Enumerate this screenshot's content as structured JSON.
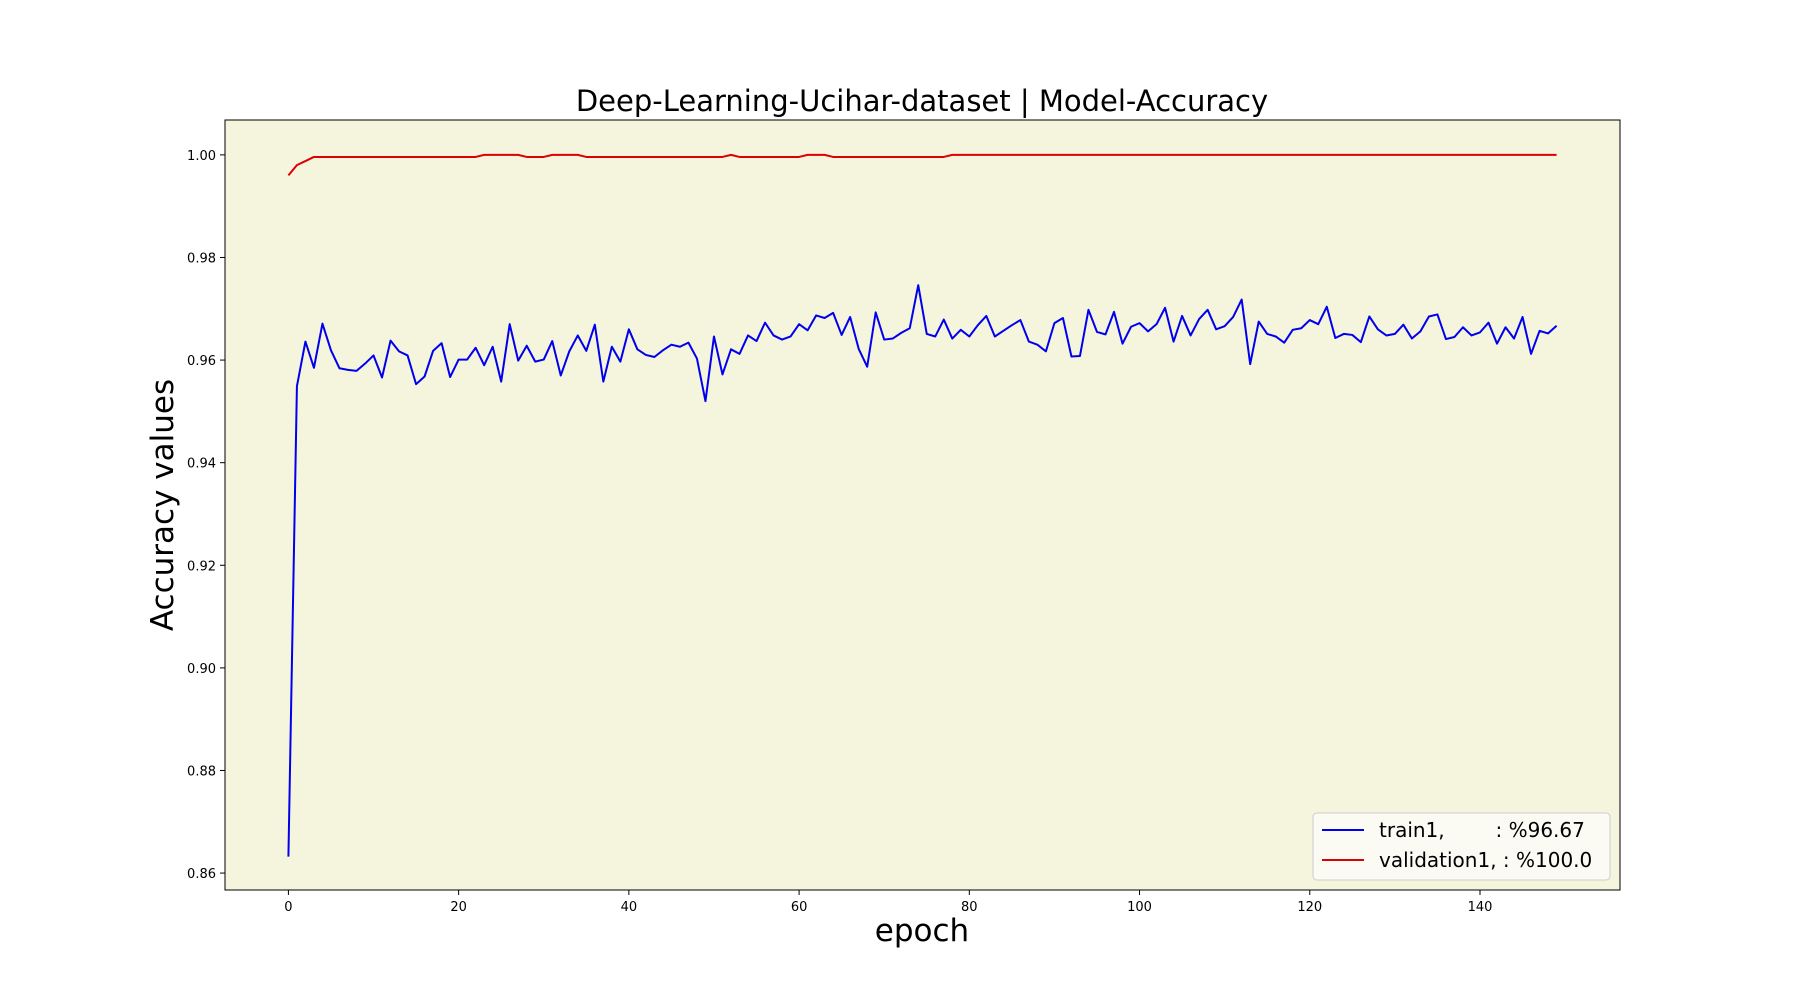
{
  "chart_data": {
    "type": "line",
    "title": "Deep-Learning-Ucihar-dataset  | Model-Accuracy",
    "xlabel": "epoch",
    "ylabel": "Accuracy values",
    "xlim": [
      -7.45,
      156.45
    ],
    "ylim": [
      0.8567,
      1.0068
    ],
    "xticks": [
      0,
      20,
      40,
      60,
      80,
      100,
      120,
      140
    ],
    "yticks": [
      0.86,
      0.88,
      0.9,
      0.92,
      0.94,
      0.96,
      0.98,
      1.0
    ],
    "ytick_labels": [
      "0.86",
      "0.88",
      "0.90",
      "0.92",
      "0.94",
      "0.96",
      "0.98",
      "1.00"
    ],
    "plot_background": "#f5f4dc",
    "grid": false,
    "legend_position": "lower-right",
    "series": [
      {
        "name": "train1,        : %96.67",
        "color": "#0000ee",
        "values": [
          0.8632,
          0.9549,
          0.9636,
          0.9585,
          0.9671,
          0.9619,
          0.9584,
          0.9581,
          0.9579,
          0.9593,
          0.9609,
          0.9566,
          0.9638,
          0.9617,
          0.9609,
          0.9553,
          0.9568,
          0.9618,
          0.9633,
          0.9567,
          0.9601,
          0.9601,
          0.9624,
          0.959,
          0.9626,
          0.9558,
          0.967,
          0.9599,
          0.9628,
          0.9597,
          0.9601,
          0.9637,
          0.957,
          0.9617,
          0.9648,
          0.9618,
          0.9669,
          0.9558,
          0.9626,
          0.9597,
          0.966,
          0.9621,
          0.961,
          0.9606,
          0.9619,
          0.963,
          0.9626,
          0.9634,
          0.9603,
          0.952,
          0.9646,
          0.9572,
          0.9621,
          0.9612,
          0.9648,
          0.9637,
          0.9673,
          0.9648,
          0.964,
          0.9646,
          0.967,
          0.9658,
          0.9687,
          0.9682,
          0.9692,
          0.9649,
          0.9684,
          0.9622,
          0.9587,
          0.9693,
          0.964,
          0.9642,
          0.9653,
          0.9662,
          0.9746,
          0.9651,
          0.9646,
          0.9679,
          0.9642,
          0.9659,
          0.9646,
          0.9668,
          0.9686,
          0.9646,
          0.9657,
          0.9668,
          0.9678,
          0.9636,
          0.963,
          0.9617,
          0.9672,
          0.9682,
          0.9607,
          0.9608,
          0.9698,
          0.9655,
          0.965,
          0.9694,
          0.9632,
          0.9665,
          0.9672,
          0.9656,
          0.967,
          0.9702,
          0.9636,
          0.9686,
          0.9648,
          0.968,
          0.9698,
          0.966,
          0.9666,
          0.9684,
          0.9718,
          0.9592,
          0.9675,
          0.9651,
          0.9646,
          0.9634,
          0.9659,
          0.9662,
          0.9678,
          0.967,
          0.9704,
          0.9643,
          0.9651,
          0.9649,
          0.9635,
          0.9685,
          0.966,
          0.9648,
          0.9651,
          0.9669,
          0.9642,
          0.9656,
          0.9685,
          0.9689,
          0.9641,
          0.9645,
          0.9664,
          0.9648,
          0.9654,
          0.9673,
          0.9632,
          0.9664,
          0.9642,
          0.9684,
          0.9612,
          0.9657,
          0.9652,
          0.9667
        ]
      },
      {
        "name": "validation1, : %100.0",
        "color": "#dd0000",
        "values": [
          0.996,
          0.998,
          0.9988,
          0.9996,
          0.9996,
          0.9996,
          0.9996,
          0.9996,
          0.9996,
          0.9996,
          0.9996,
          0.9996,
          0.9996,
          0.9996,
          0.9996,
          0.9996,
          0.9996,
          0.9996,
          0.9996,
          0.9996,
          0.9996,
          0.9996,
          0.9996,
          1.0,
          1.0,
          1.0,
          1.0,
          1.0,
          0.9996,
          0.9996,
          0.9996,
          1.0,
          1.0,
          1.0,
          1.0,
          0.9996,
          0.9996,
          0.9996,
          0.9996,
          0.9996,
          0.9996,
          0.9996,
          0.9996,
          0.9996,
          0.9996,
          0.9996,
          0.9996,
          0.9996,
          0.9996,
          0.9996,
          0.9996,
          0.9996,
          1.0,
          0.9996,
          0.9996,
          0.9996,
          0.9996,
          0.9996,
          0.9996,
          0.9996,
          0.9996,
          1.0,
          1.0,
          1.0,
          0.9996,
          0.9996,
          0.9996,
          0.9996,
          0.9996,
          0.9996,
          0.9996,
          0.9996,
          0.9996,
          0.9996,
          0.9996,
          0.9996,
          0.9996,
          0.9996,
          1.0,
          1.0,
          1.0,
          1.0,
          1.0,
          1.0,
          1.0,
          1.0,
          1.0,
          1.0,
          1.0,
          1.0,
          1.0,
          1.0,
          1.0,
          1.0,
          1.0,
          1.0,
          1.0,
          1.0,
          1.0,
          1.0,
          1.0,
          1.0,
          1.0,
          1.0,
          1.0,
          1.0,
          1.0,
          1.0,
          1.0,
          1.0,
          1.0,
          1.0,
          1.0,
          1.0,
          1.0,
          1.0,
          1.0,
          1.0,
          1.0,
          1.0,
          1.0,
          1.0,
          1.0,
          1.0,
          1.0,
          1.0,
          1.0,
          1.0,
          1.0,
          1.0,
          1.0,
          1.0,
          1.0,
          1.0,
          1.0,
          1.0,
          1.0,
          1.0,
          1.0,
          1.0,
          1.0,
          1.0,
          1.0,
          1.0,
          1.0,
          1.0,
          1.0,
          1.0,
          1.0,
          1.0
        ]
      }
    ]
  }
}
